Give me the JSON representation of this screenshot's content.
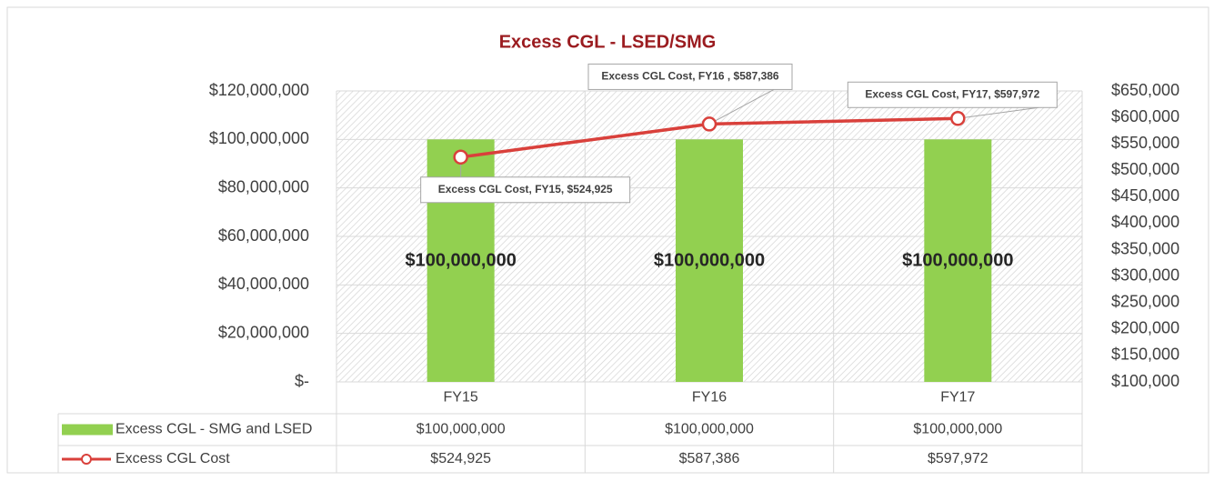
{
  "chart_data": {
    "type": "bar",
    "title": "Excess CGL - LSED/SMG",
    "categories": [
      "FY15",
      "FY16",
      "FY17"
    ],
    "ylim": [
      0,
      120000000
    ],
    "yticks": [
      {
        "value": 0,
        "label": "$-"
      },
      {
        "value": 20000000,
        "label": "$20,000,000"
      },
      {
        "value": 40000000,
        "label": "$40,000,000"
      },
      {
        "value": 60000000,
        "label": "$60,000,000"
      },
      {
        "value": 80000000,
        "label": "$80,000,000"
      },
      {
        "value": 100000000,
        "label": "$100,000,000"
      },
      {
        "value": 120000000,
        "label": "$120,000,000"
      }
    ],
    "y2lim": [
      100000,
      650000
    ],
    "y2ticks": [
      {
        "value": 100000,
        "label": "$100,000"
      },
      {
        "value": 150000,
        "label": "$150,000"
      },
      {
        "value": 200000,
        "label": "$200,000"
      },
      {
        "value": 250000,
        "label": "$250,000"
      },
      {
        "value": 300000,
        "label": "$300,000"
      },
      {
        "value": 350000,
        "label": "$350,000"
      },
      {
        "value": 400000,
        "label": "$400,000"
      },
      {
        "value": 450000,
        "label": "$450,000"
      },
      {
        "value": 500000,
        "label": "$500,000"
      },
      {
        "value": 550000,
        "label": "$550,000"
      },
      {
        "value": 600000,
        "label": "$600,000"
      },
      {
        "value": 650000,
        "label": "$650,000"
      }
    ],
    "grid": true,
    "series": [
      {
        "name": "Excess CGL - SMG and LSED",
        "type": "bar",
        "color": "#92d050",
        "values": [
          100000000,
          100000000,
          100000000
        ],
        "value_labels": [
          "$100,000,000",
          "$100,000,000",
          "$100,000,000"
        ],
        "table_labels": [
          "$100,000,000",
          "$100,000,000",
          "$100,000,000"
        ]
      },
      {
        "name": "Excess CGL Cost",
        "type": "line",
        "axis": "y2",
        "color": "#d9403b",
        "values": [
          524925,
          587386,
          597972
        ],
        "value_labels": [
          "Excess CGL Cost, FY15, $524,925",
          "Excess CGL Cost, FY16 , $587,386",
          "Excess CGL Cost, FY17, $597,972"
        ],
        "table_labels": [
          "$524,925",
          "$587,386",
          "$597,972"
        ]
      }
    ]
  }
}
